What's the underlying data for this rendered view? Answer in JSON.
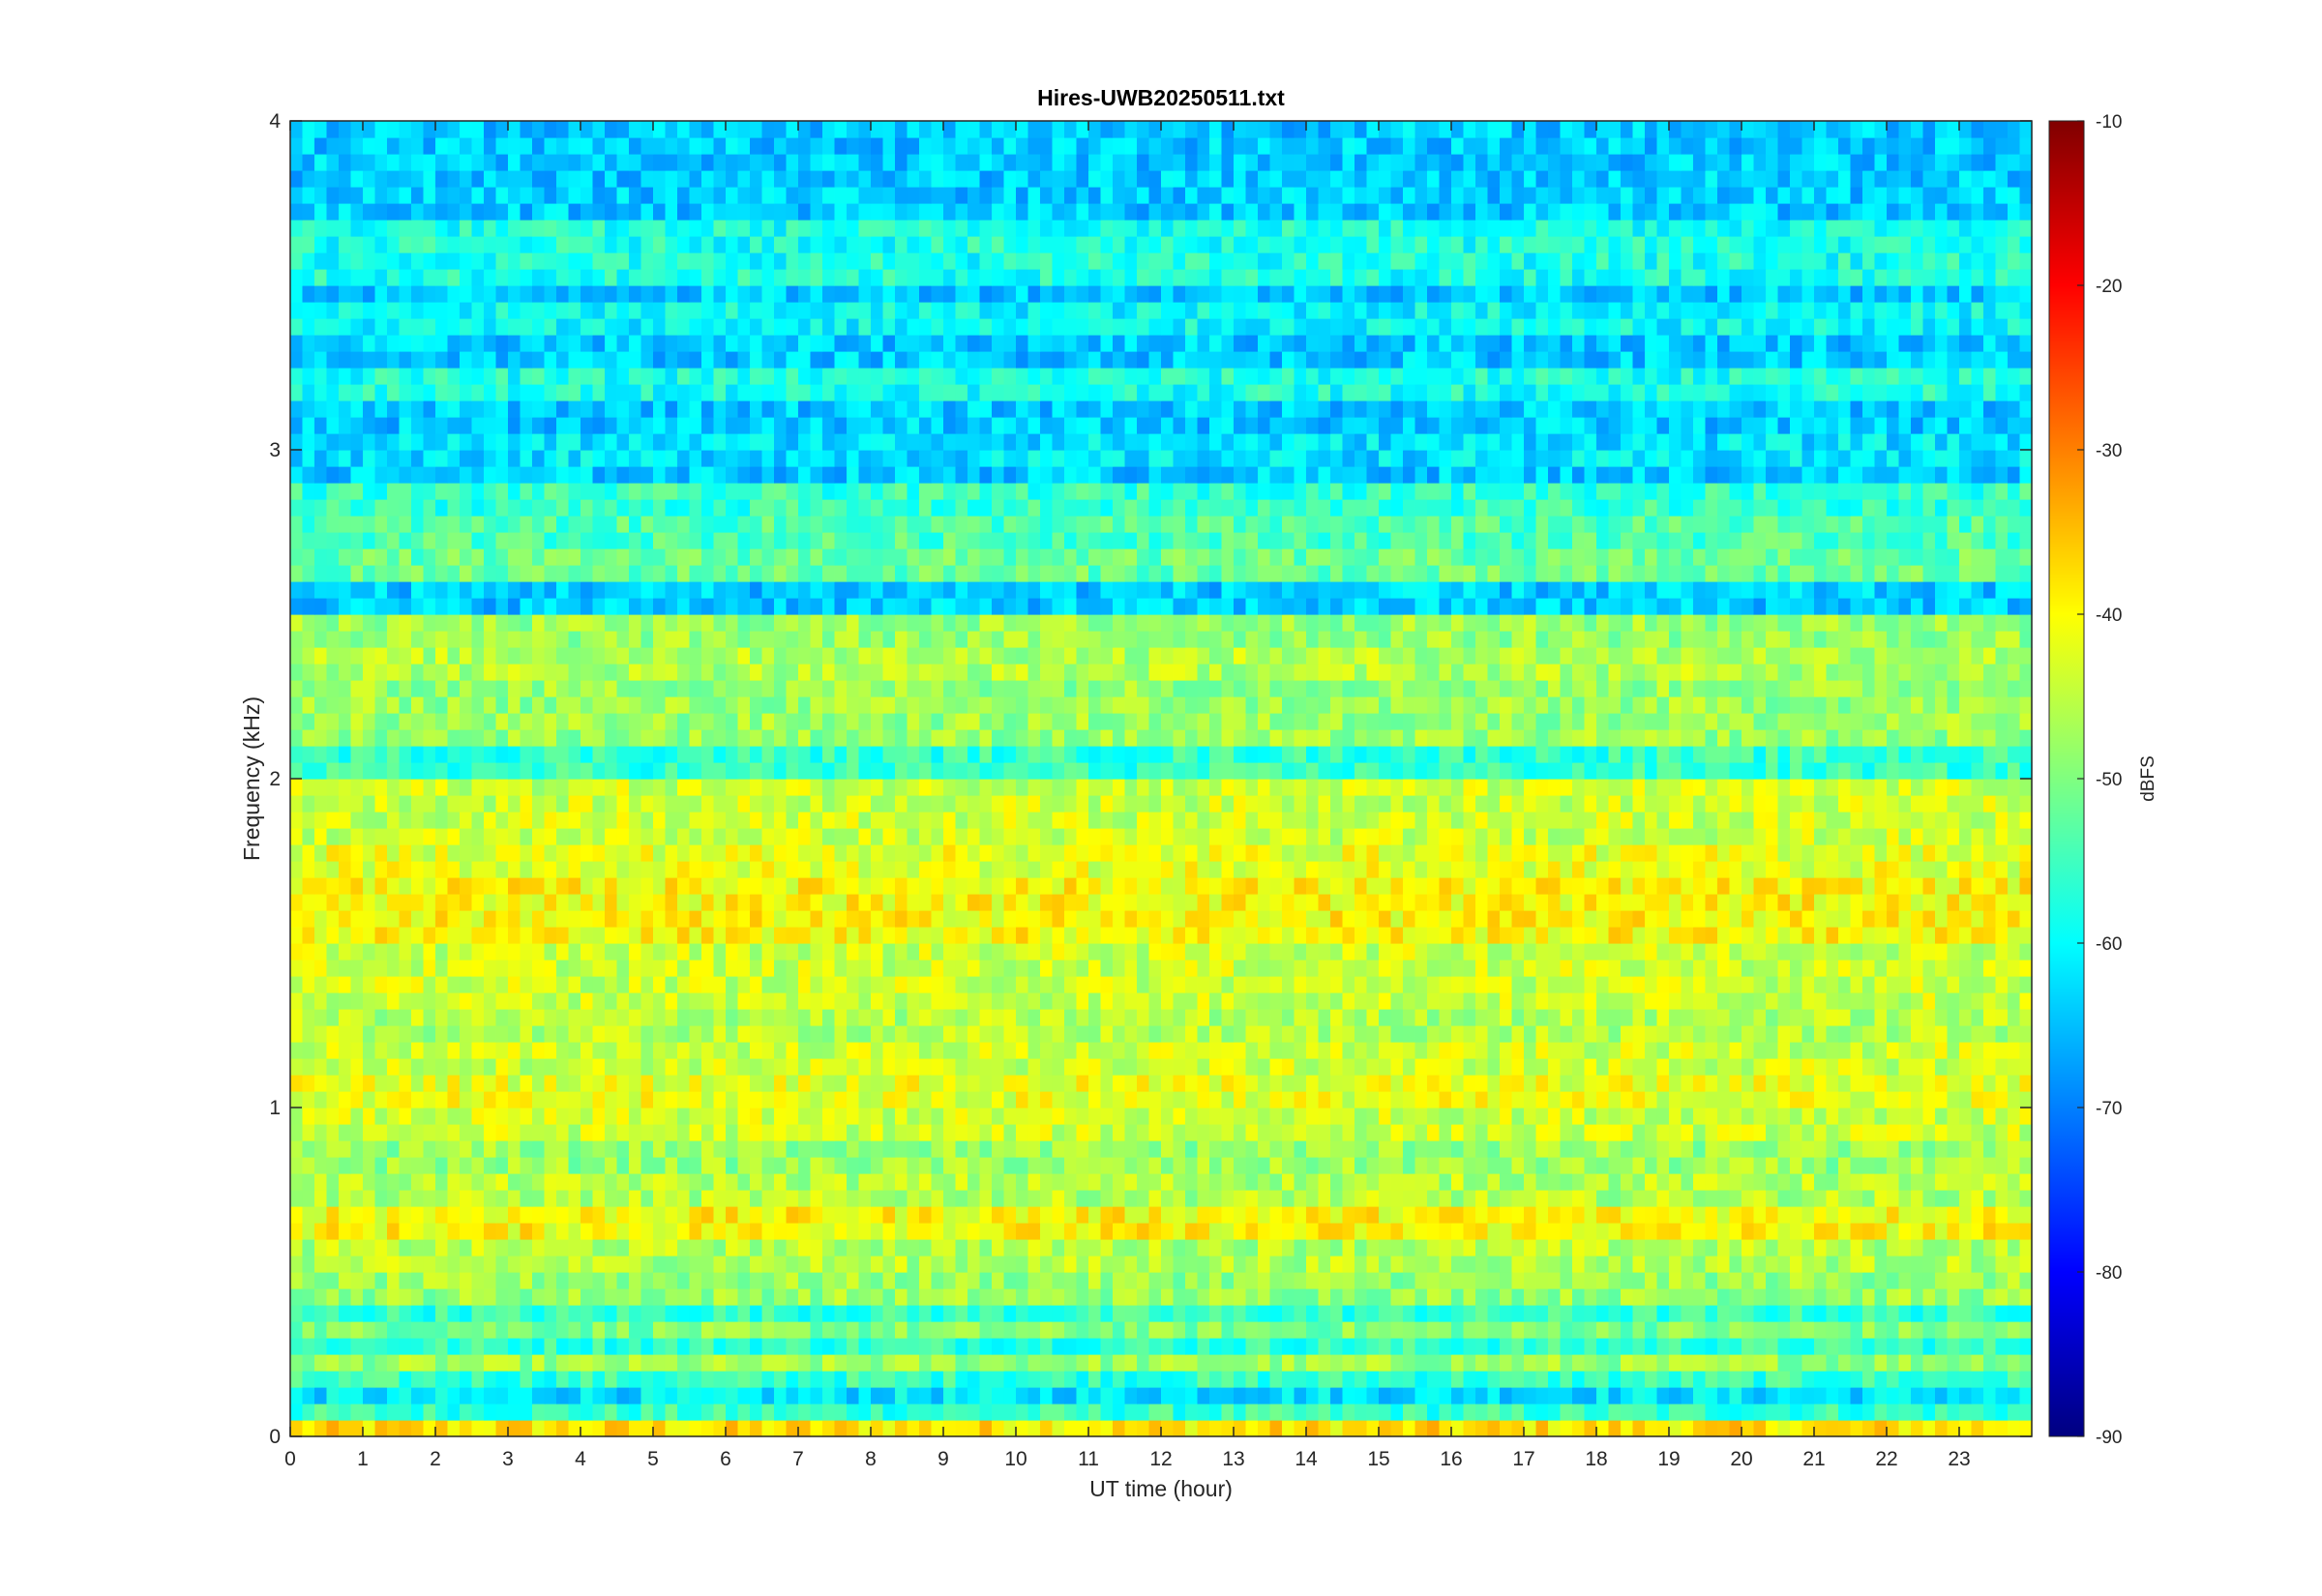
{
  "chart_data": {
    "type": "heatmap",
    "title": "Hires-UWB20250511.txt",
    "xlabel": "UT time (hour)",
    "ylabel": "Frequency (kHz)",
    "xlim": [
      0,
      24
    ],
    "ylim": [
      0,
      4
    ],
    "xticks": [
      "0",
      "1",
      "2",
      "3",
      "4",
      "5",
      "6",
      "7",
      "8",
      "9",
      "10",
      "11",
      "12",
      "13",
      "14",
      "15",
      "16",
      "17",
      "18",
      "19",
      "20",
      "21",
      "22",
      "23"
    ],
    "yticks": [
      "0",
      "1",
      "2",
      "3",
      "4"
    ],
    "colormap": "jet",
    "colorbar": {
      "label": "dBFS",
      "clim": [
        -90,
        -10
      ],
      "ticks": [
        "-10",
        "-20",
        "-30",
        "-40",
        "-50",
        "-60",
        "-70",
        "-80",
        "-90"
      ]
    },
    "grid": false,
    "bands": [
      {
        "f": 0.04,
        "dbfs": -38
      },
      {
        "f": 0.12,
        "dbfs": -62
      },
      {
        "f": 0.22,
        "dbfs": -48
      },
      {
        "f": 0.33,
        "dbfs": -50
      },
      {
        "f": 0.45,
        "dbfs": -48
      },
      {
        "f": 0.55,
        "dbfs": -46
      },
      {
        "f": 0.65,
        "dbfs": -40
      },
      {
        "f": 0.75,
        "dbfs": -46
      },
      {
        "f": 0.85,
        "dbfs": -48
      },
      {
        "f": 0.95,
        "dbfs": -44
      },
      {
        "f": 1.05,
        "dbfs": -42
      },
      {
        "f": 1.15,
        "dbfs": -44
      },
      {
        "f": 1.25,
        "dbfs": -46
      },
      {
        "f": 1.35,
        "dbfs": -44
      },
      {
        "f": 1.45,
        "dbfs": -44
      },
      {
        "f": 1.55,
        "dbfs": -40
      },
      {
        "f": 1.65,
        "dbfs": -40
      },
      {
        "f": 1.75,
        "dbfs": -42
      },
      {
        "f": 1.85,
        "dbfs": -44
      },
      {
        "f": 1.95,
        "dbfs": -44
      },
      {
        "f": 2.15,
        "dbfs": -48
      },
      {
        "f": 2.25,
        "dbfs": -48
      },
      {
        "f": 2.35,
        "dbfs": -46
      },
      {
        "f": 2.45,
        "dbfs": -48
      },
      {
        "f": 2.65,
        "dbfs": -52
      },
      {
        "f": 2.75,
        "dbfs": -54
      },
      {
        "f": 2.85,
        "dbfs": -56
      },
      {
        "f": 3.0,
        "dbfs": -62
      },
      {
        "f": 3.2,
        "dbfs": -58
      },
      {
        "f": 3.4,
        "dbfs": -60
      },
      {
        "f": 3.55,
        "dbfs": -58
      },
      {
        "f": 3.65,
        "dbfs": -58
      },
      {
        "f": 3.8,
        "dbfs": -64
      }
    ]
  }
}
